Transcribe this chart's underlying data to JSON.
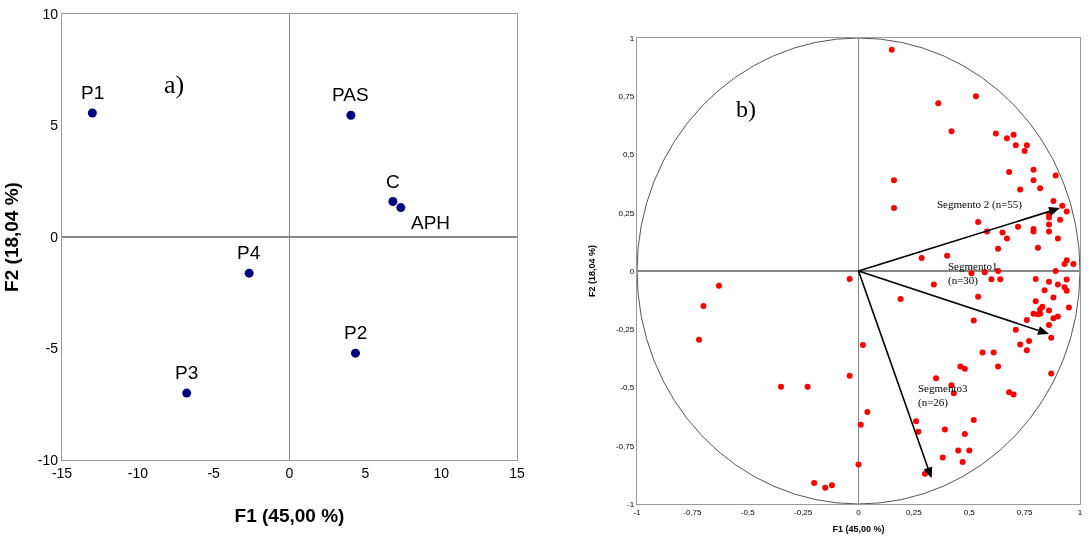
{
  "chart_data": [
    {
      "type": "scatter",
      "xlabel": "F1 (45,00 %)",
      "ylabel": "F2 (18,04 %)",
      "color": "#00007f",
      "marker": "circle",
      "x": [
        -13.0,
        4.05,
        6.82,
        7.34,
        -2.66,
        4.35,
        -6.78
      ],
      "values": [
        5.56,
        5.46,
        1.59,
        1.32,
        -1.62,
        -5.21,
        -7.0
      ],
      "xlim": [
        -15,
        15
      ],
      "ylim": [
        -10,
        10
      ],
      "xticks": [
        -15,
        -10,
        -5,
        0,
        5,
        10,
        15
      ],
      "yticks": [
        -10,
        -5,
        0,
        5,
        10
      ],
      "annotations": [
        "a)",
        {
          "text": "P1",
          "x": -13.0,
          "y": 5.56
        },
        {
          "text": "PAS",
          "x": 4.05,
          "y": 5.46
        },
        {
          "text": "C",
          "x": 6.82,
          "y": 1.59
        },
        {
          "text": "APH",
          "x": 7.34,
          "y": 1.32
        },
        {
          "text": "P4",
          "x": -2.66,
          "y": -1.62
        },
        {
          "text": "P2",
          "x": 4.35,
          "y": -5.21
        },
        {
          "text": "P3",
          "x": -6.78,
          "y": -7.0
        }
      ]
    },
    {
      "type": "scatter",
      "xlabel": "F1 (45,00 %)",
      "ylabel": "F2 (18,04 %)",
      "xlim": [
        -1,
        1
      ],
      "ylim": [
        -1,
        1
      ],
      "xticks": [
        {
          "value": -1,
          "label": "-1"
        },
        {
          "value": -0.75,
          "label": "-0,75"
        },
        {
          "value": -0.5,
          "label": "-0,5"
        },
        {
          "value": -0.25,
          "label": "-0,25"
        },
        {
          "value": 0,
          "label": "0"
        },
        {
          "value": 0.25,
          "label": "0,25"
        },
        {
          "value": 0.5,
          "label": "0,5"
        },
        {
          "value": 0.75,
          "label": "0,75"
        },
        {
          "value": 1,
          "label": "1"
        }
      ],
      "yticks": [
        {
          "value": -1,
          "label": "-1"
        },
        {
          "value": -0.75,
          "label": "-0,75"
        },
        {
          "value": -0.5,
          "label": "-0,5"
        },
        {
          "value": -0.25,
          "label": "-0,25"
        },
        {
          "value": 0,
          "label": "0"
        },
        {
          "value": 0.25,
          "label": "0,25"
        },
        {
          "value": 0.5,
          "label": "0,5"
        },
        {
          "value": 0.75,
          "label": "0,75"
        },
        {
          "value": 1,
          "label": "1"
        }
      ],
      "series": [
        {
          "color": "#ff0000",
          "marker": "circle",
          "x": [
            0.15,
            0.53,
            0.36,
            0.42,
            0.62,
            0.67,
            0.7,
            0.71,
            0.76,
            0.75,
            0.68,
            0.79,
            0.79,
            0.73,
            0.82,
            0.89,
            0.16,
            0.16,
            0.88,
            0.92,
            0.94,
            0.86,
            0.86,
            0.91,
            0.86,
            0.54,
            0.72,
            0.79,
            0.79,
            0.58,
            0.65,
            0.67,
            0.86,
            0.9,
            0.81,
            0.63,
            0.285,
            0.4,
            0.94,
            0.97,
            0.93,
            0.51,
            0.57,
            0.63,
            0.89,
            -0.04,
            0.6,
            0.64,
            0.8,
            0.86,
            0.94,
            0.9,
            0.93,
            0.94,
            0.34,
            0.84,
            0.88,
            0.54,
            0.19,
            0.8,
            0.83,
            0.82,
            0.79,
            0.81,
            0.82,
            0.86,
            0.95,
            0.9,
            0.88,
            0.76,
            0.52,
            0.86,
            0.71,
            0.87,
            0.77,
            0.73,
            0.76,
            0.02,
            0.56,
            0.61,
            0.63,
            0.46,
            0.48,
            0.87,
            -0.04,
            0.35,
            0.42,
            0.43,
            0.68,
            0.7,
            0.04,
            0.52,
            0.01,
            0.26,
            0.27,
            0.39,
            0.48,
            0.45,
            0.5,
            0.38,
            0.47,
            0.0,
            0.3,
            -0.63,
            -0.7,
            -0.72,
            -0.35,
            -0.23,
            -0.2,
            -0.15,
            -0.12
          ],
          "values": [
            0.95,
            0.75,
            0.72,
            0.6,
            0.59,
            0.57,
            0.585,
            0.54,
            0.54,
            0.515,
            0.425,
            0.435,
            0.39,
            0.35,
            0.355,
            0.41,
            0.39,
            0.27,
            0.3,
            0.28,
            0.255,
            0.245,
            0.23,
            0.22,
            0.2,
            0.21,
            0.19,
            0.18,
            0.17,
            0.17,
            0.165,
            0.14,
            0.17,
            0.14,
            0.1,
            0.095,
            0.056,
            0.065,
            0.046,
            0.03,
            0.03,
            -0.01,
            -0.005,
            0.0,
            0.0,
            -0.034,
            -0.035,
            -0.035,
            -0.034,
            -0.046,
            -0.037,
            -0.058,
            -0.07,
            -0.085,
            -0.058,
            -0.083,
            -0.114,
            -0.11,
            -0.12,
            -0.13,
            -0.153,
            -0.164,
            -0.183,
            -0.186,
            -0.183,
            -0.17,
            -0.157,
            -0.195,
            -0.203,
            -0.21,
            -0.212,
            -0.232,
            -0.252,
            -0.286,
            -0.3,
            -0.315,
            -0.34,
            -0.318,
            -0.35,
            -0.35,
            -0.41,
            -0.41,
            -0.42,
            -0.44,
            -0.45,
            -0.46,
            -0.49,
            -0.525,
            -0.52,
            -0.53,
            -0.605,
            -0.64,
            -0.66,
            -0.645,
            -0.69,
            -0.68,
            -0.7,
            -0.77,
            -0.77,
            -0.8,
            -0.82,
            -0.83,
            -0.87,
            -0.063,
            -0.15,
            -0.295,
            -0.497,
            -0.497,
            -0.91,
            -0.93,
            -0.92
          ]
        }
      ],
      "annotations": [
        "b)",
        "Segmento 2 (n=55)",
        "Segmento1\n(n=30)",
        "Segmento3\n(n=26)"
      ]
    }
  ]
}
